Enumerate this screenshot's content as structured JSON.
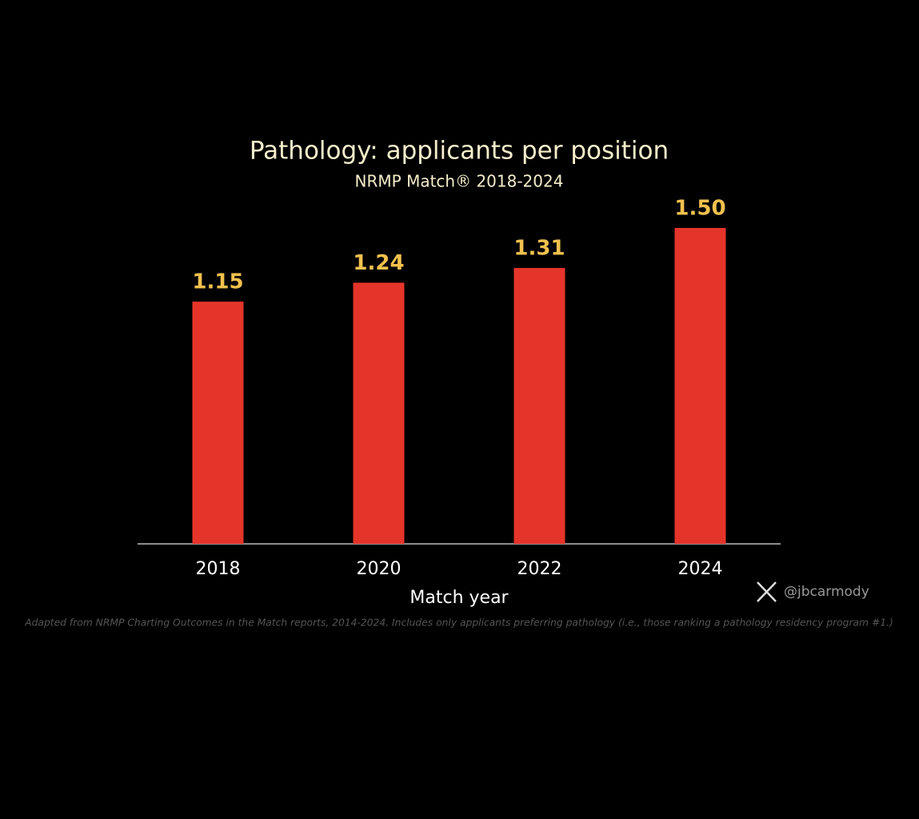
{
  "chart_data": {
    "type": "bar",
    "title": "Pathology: applicants per position",
    "subtitle": "NRMP Match® 2018-2024",
    "x_label": "Match year",
    "categories": [
      "2018",
      "2020",
      "2022",
      "2024"
    ],
    "values": [
      1.15,
      1.24,
      1.31,
      1.5
    ],
    "value_labels": [
      "1.15",
      "1.24",
      "1.31",
      "1.50"
    ],
    "color": "#e5352a",
    "credit": "@jbcarmody",
    "footnote": "Adapted from NRMP Charting Outcomes in the Match reports, 2014-2024. Includes only applicants preferring pathology (i.e., those ranking a pathology residency program #1.)"
  }
}
